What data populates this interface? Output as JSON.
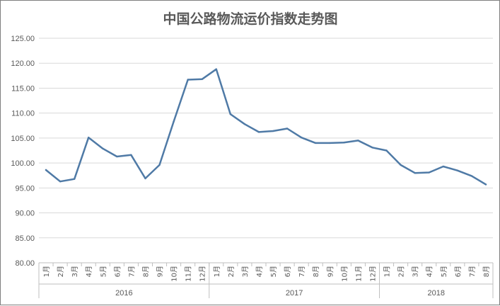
{
  "chart_data": {
    "type": "line",
    "title": "中国公路物流运价指数走势图",
    "xlabel": "",
    "ylabel": "",
    "ylim": [
      80,
      125
    ],
    "y_ticks": [
      "80.00",
      "85.00",
      "90.00",
      "95.00",
      "100.00",
      "105.00",
      "110.00",
      "115.00",
      "120.00",
      "125.00"
    ],
    "grid": true,
    "legend": "none",
    "line_color": "#4f7aa6",
    "year_groups": [
      {
        "year": "2016",
        "months": [
          "1月",
          "2月",
          "3月",
          "4月",
          "5月",
          "6月",
          "7月",
          "8月",
          "9月",
          "10月",
          "11月",
          "12月"
        ]
      },
      {
        "year": "2017",
        "months": [
          "1月",
          "2月",
          "3月",
          "4月",
          "5月",
          "6月",
          "7月",
          "8月",
          "9月",
          "10月",
          "11月",
          "12月"
        ]
      },
      {
        "year": "2018",
        "months": [
          "1月",
          "2月",
          "3月",
          "4月",
          "5月",
          "6月",
          "7月",
          "8月"
        ]
      }
    ],
    "series": [
      {
        "values": [
          98.6,
          96.3,
          96.8,
          105.1,
          102.9,
          101.3,
          101.6,
          96.9,
          99.6,
          108.3,
          116.7,
          116.8,
          118.8,
          109.8,
          107.8,
          106.2,
          106.4,
          106.9,
          105.1,
          104.0,
          104.0,
          104.1,
          104.5,
          103.1,
          102.5,
          99.6,
          98.0,
          98.1,
          99.3,
          98.5,
          97.4,
          95.7
        ]
      }
    ]
  }
}
